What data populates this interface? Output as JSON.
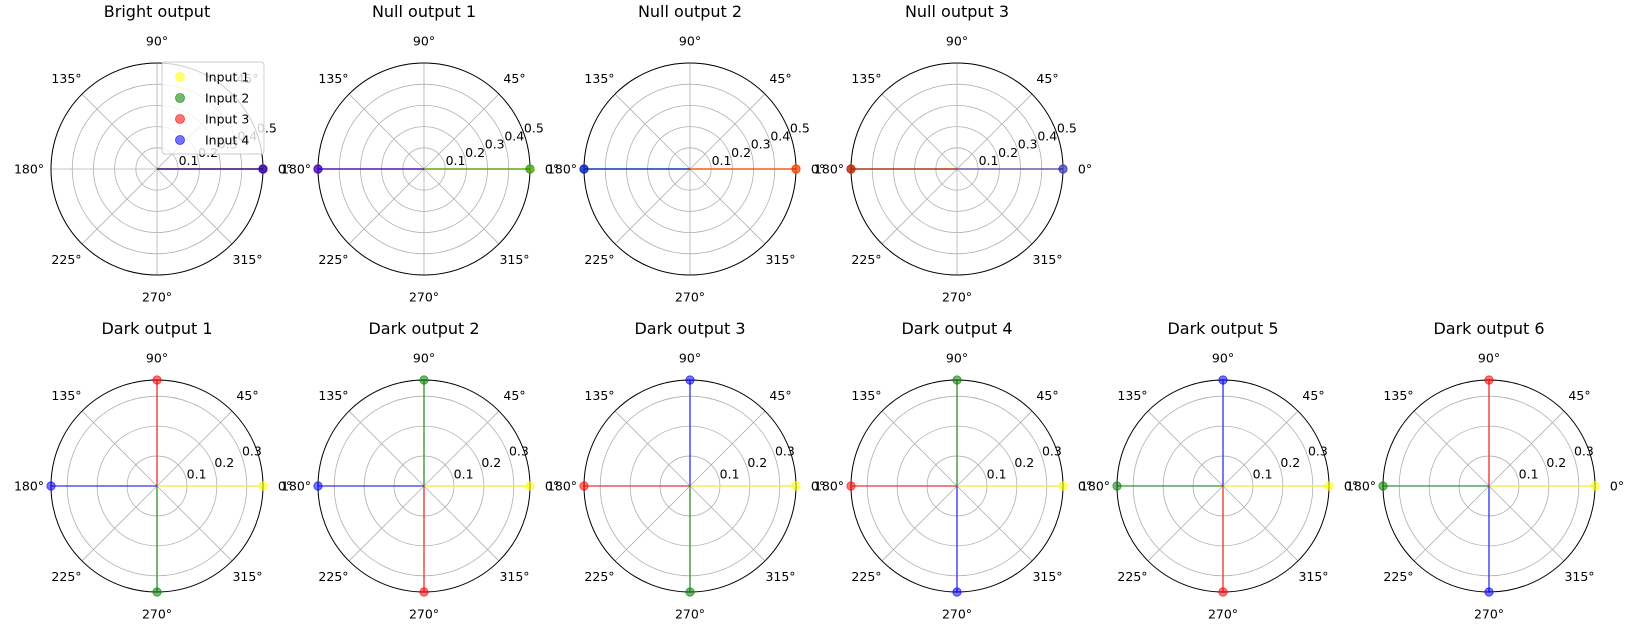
{
  "colors": {
    "Input 1": "#ffff00",
    "Input 2": "#008000",
    "Input 3": "#ff0000",
    "Input 4": "#0000ff"
  },
  "chart_data": [
    {
      "type": "polar-phasor",
      "title": "Bright output",
      "theta_ticks": [
        "0°",
        "45°",
        "90°",
        "135°",
        "180°",
        "225°",
        "270°",
        "315°"
      ],
      "r_ticks": [
        "0.1",
        "0.2",
        "0.3",
        "0.4",
        "0.5"
      ],
      "rmax": 0.5,
      "series": [
        {
          "name": "Input 1",
          "angle_deg": 0,
          "amplitude": 0.5
        },
        {
          "name": "Input 2",
          "angle_deg": 0,
          "amplitude": 0.5
        },
        {
          "name": "Input 3",
          "angle_deg": 0,
          "amplitude": 0.5
        },
        {
          "name": "Input 4",
          "angle_deg": 0,
          "amplitude": 0.5
        }
      ],
      "legend": {
        "placement": "upper-right",
        "entries": [
          "Input 1",
          "Input 2",
          "Input 3",
          "Input 4"
        ]
      }
    },
    {
      "type": "polar-phasor",
      "title": "Null output 1",
      "theta_ticks": [
        "0°",
        "45°",
        "90°",
        "135°",
        "180°",
        "225°",
        "270°",
        "315°"
      ],
      "r_ticks": [
        "0.1",
        "0.2",
        "0.3",
        "0.4",
        "0.5"
      ],
      "rmax": 0.5,
      "series": [
        {
          "name": "Input 1",
          "angle_deg": 0,
          "amplitude": 0.5
        },
        {
          "name": "Input 2",
          "angle_deg": 0,
          "amplitude": 0.5
        },
        {
          "name": "Input 3",
          "angle_deg": 180,
          "amplitude": 0.5
        },
        {
          "name": "Input 4",
          "angle_deg": 180,
          "amplitude": 0.5
        }
      ]
    },
    {
      "type": "polar-phasor",
      "title": "Null output 2",
      "theta_ticks": [
        "0°",
        "45°",
        "90°",
        "135°",
        "180°",
        "225°",
        "270°",
        "315°"
      ],
      "r_ticks": [
        "0.1",
        "0.2",
        "0.3",
        "0.4",
        "0.5"
      ],
      "rmax": 0.5,
      "series": [
        {
          "name": "Input 1",
          "angle_deg": 0,
          "amplitude": 0.5
        },
        {
          "name": "Input 2",
          "angle_deg": 180,
          "amplitude": 0.5
        },
        {
          "name": "Input 3",
          "angle_deg": 0,
          "amplitude": 0.5
        },
        {
          "name": "Input 4",
          "angle_deg": 180,
          "amplitude": 0.5
        }
      ]
    },
    {
      "type": "polar-phasor",
      "title": "Null output 3",
      "theta_ticks": [
        "0°",
        "45°",
        "90°",
        "135°",
        "180°",
        "225°",
        "270°",
        "315°"
      ],
      "r_ticks": [
        "0.1",
        "0.2",
        "0.3",
        "0.4",
        "0.5"
      ],
      "rmax": 0.5,
      "series": [
        {
          "name": "Input 1",
          "angle_deg": 0,
          "amplitude": 0.5
        },
        {
          "name": "Input 2",
          "angle_deg": 180,
          "amplitude": 0.5
        },
        {
          "name": "Input 3",
          "angle_deg": 180,
          "amplitude": 0.5
        },
        {
          "name": "Input 4",
          "angle_deg": 0,
          "amplitude": 0.5
        }
      ]
    },
    {
      "type": "polar-phasor",
      "title": "Dark output 1",
      "theta_ticks": [
        "0°",
        "45°",
        "90°",
        "135°",
        "180°",
        "225°",
        "270°",
        "315°"
      ],
      "r_ticks": [
        "0.1",
        "0.2",
        "0.3"
      ],
      "rmax": 0.354,
      "series": [
        {
          "name": "Input 1",
          "angle_deg": 0,
          "amplitude": 0.354
        },
        {
          "name": "Input 2",
          "angle_deg": 270,
          "amplitude": 0.354
        },
        {
          "name": "Input 3",
          "angle_deg": 90,
          "amplitude": 0.354
        },
        {
          "name": "Input 4",
          "angle_deg": 180,
          "amplitude": 0.354
        }
      ]
    },
    {
      "type": "polar-phasor",
      "title": "Dark output 2",
      "theta_ticks": [
        "0°",
        "45°",
        "90°",
        "135°",
        "180°",
        "225°",
        "270°",
        "315°"
      ],
      "r_ticks": [
        "0.1",
        "0.2",
        "0.3"
      ],
      "rmax": 0.354,
      "series": [
        {
          "name": "Input 1",
          "angle_deg": 0,
          "amplitude": 0.354
        },
        {
          "name": "Input 2",
          "angle_deg": 90,
          "amplitude": 0.354
        },
        {
          "name": "Input 3",
          "angle_deg": 270,
          "amplitude": 0.354
        },
        {
          "name": "Input 4",
          "angle_deg": 180,
          "amplitude": 0.354
        }
      ]
    },
    {
      "type": "polar-phasor",
      "title": "Dark output 3",
      "theta_ticks": [
        "0°",
        "45°",
        "90°",
        "135°",
        "180°",
        "225°",
        "270°",
        "315°"
      ],
      "r_ticks": [
        "0.1",
        "0.2",
        "0.3"
      ],
      "rmax": 0.354,
      "series": [
        {
          "name": "Input 1",
          "angle_deg": 0,
          "amplitude": 0.354
        },
        {
          "name": "Input 2",
          "angle_deg": 270,
          "amplitude": 0.354
        },
        {
          "name": "Input 3",
          "angle_deg": 180,
          "amplitude": 0.354
        },
        {
          "name": "Input 4",
          "angle_deg": 90,
          "amplitude": 0.354
        }
      ]
    },
    {
      "type": "polar-phasor",
      "title": "Dark output 4",
      "theta_ticks": [
        "0°",
        "45°",
        "90°",
        "135°",
        "180°",
        "225°",
        "270°",
        "315°"
      ],
      "r_ticks": [
        "0.1",
        "0.2",
        "0.3"
      ],
      "rmax": 0.354,
      "series": [
        {
          "name": "Input 1",
          "angle_deg": 0,
          "amplitude": 0.354
        },
        {
          "name": "Input 2",
          "angle_deg": 90,
          "amplitude": 0.354
        },
        {
          "name": "Input 3",
          "angle_deg": 180,
          "amplitude": 0.354
        },
        {
          "name": "Input 4",
          "angle_deg": 270,
          "amplitude": 0.354
        }
      ]
    },
    {
      "type": "polar-phasor",
      "title": "Dark output 5",
      "theta_ticks": [
        "0°",
        "45°",
        "90°",
        "135°",
        "180°",
        "225°",
        "270°",
        "315°"
      ],
      "r_ticks": [
        "0.1",
        "0.2",
        "0.3"
      ],
      "rmax": 0.354,
      "series": [
        {
          "name": "Input 1",
          "angle_deg": 0,
          "amplitude": 0.354
        },
        {
          "name": "Input 2",
          "angle_deg": 180,
          "amplitude": 0.354
        },
        {
          "name": "Input 3",
          "angle_deg": 270,
          "amplitude": 0.354
        },
        {
          "name": "Input 4",
          "angle_deg": 90,
          "amplitude": 0.354
        }
      ]
    },
    {
      "type": "polar-phasor",
      "title": "Dark output 6",
      "theta_ticks": [
        "0°",
        "45°",
        "90°",
        "135°",
        "180°",
        "225°",
        "270°",
        "315°"
      ],
      "r_ticks": [
        "0.1",
        "0.2",
        "0.3"
      ],
      "rmax": 0.354,
      "series": [
        {
          "name": "Input 1",
          "angle_deg": 0,
          "amplitude": 0.354
        },
        {
          "name": "Input 2",
          "angle_deg": 180,
          "amplitude": 0.354
        },
        {
          "name": "Input 3",
          "angle_deg": 90,
          "amplitude": 0.354
        },
        {
          "name": "Input 4",
          "angle_deg": 270,
          "amplitude": 0.354
        }
      ]
    }
  ]
}
